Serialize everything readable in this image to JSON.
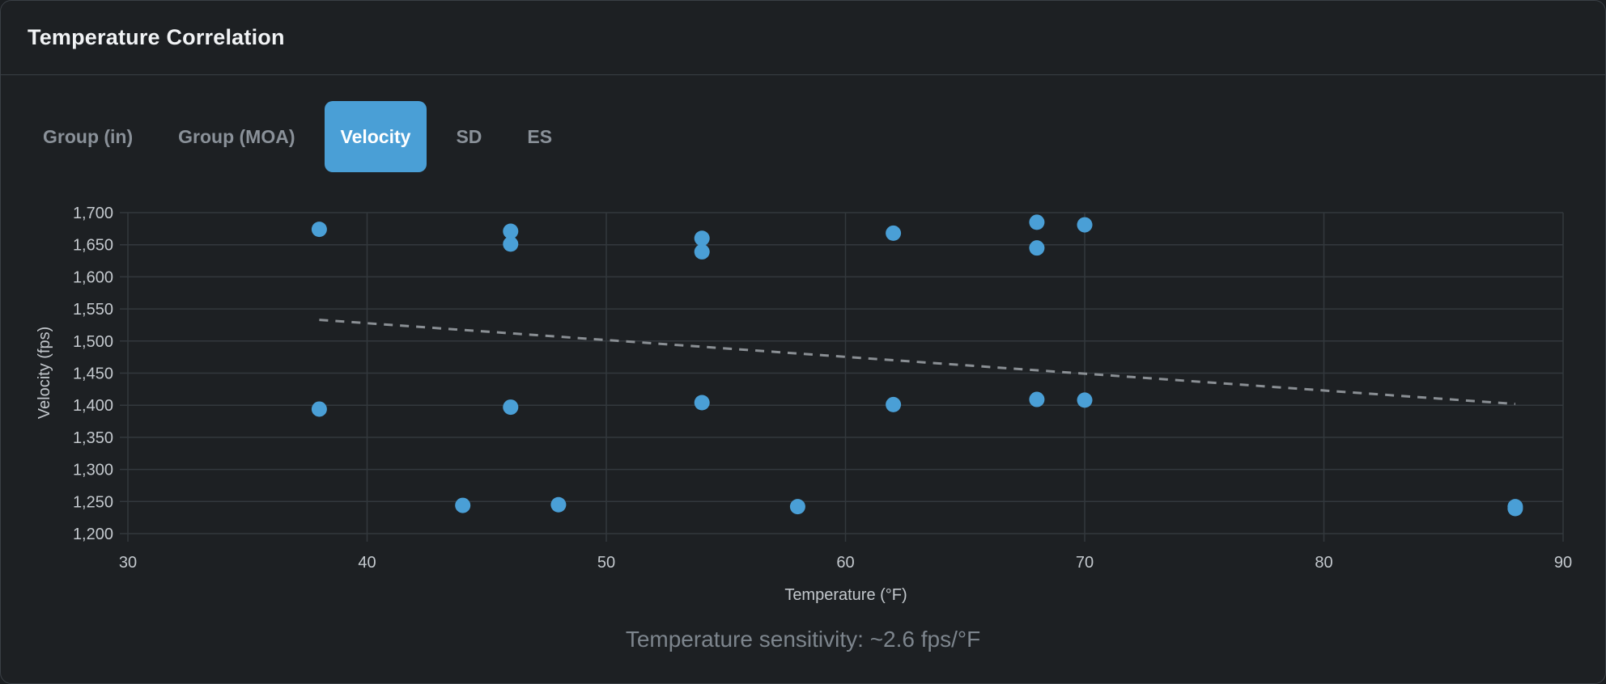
{
  "header": {
    "title": "Temperature Correlation"
  },
  "tabs": [
    {
      "label": "Group (in)",
      "active": false
    },
    {
      "label": "Group (MOA)",
      "active": false
    },
    {
      "label": "Velocity",
      "active": true
    },
    {
      "label": "SD",
      "active": false
    },
    {
      "label": "ES",
      "active": false
    }
  ],
  "footer": {
    "sensitivity": "Temperature sensitivity: ~2.6 fps/°F"
  },
  "colors": {
    "accent": "#4a9fd6",
    "point": "#4a9fd6",
    "trend": "#8a8f94",
    "grid": "#33383d"
  },
  "chart_data": {
    "type": "scatter",
    "xlabel": "Temperature (°F)",
    "ylabel": "Velocity (fps)",
    "xlim": [
      30,
      90
    ],
    "ylim": [
      1200,
      1700
    ],
    "x_ticks": [
      30,
      40,
      50,
      60,
      70,
      80,
      90
    ],
    "y_ticks": [
      1200,
      1250,
      1300,
      1350,
      1400,
      1450,
      1500,
      1550,
      1600,
      1650,
      1700
    ],
    "x_tick_labels": [
      "30",
      "40",
      "50",
      "60",
      "70",
      "80",
      "90"
    ],
    "y_tick_labels": [
      "1,200",
      "1,250",
      "1,300",
      "1,350",
      "1,400",
      "1,450",
      "1,500",
      "1,550",
      "1,600",
      "1,650",
      "1,700"
    ],
    "grid": true,
    "points": [
      {
        "x": 38,
        "y": 1674
      },
      {
        "x": 38,
        "y": 1394
      },
      {
        "x": 44,
        "y": 1244
      },
      {
        "x": 46,
        "y": 1671
      },
      {
        "x": 46,
        "y": 1651
      },
      {
        "x": 46,
        "y": 1397
      },
      {
        "x": 48,
        "y": 1245
      },
      {
        "x": 54,
        "y": 1660
      },
      {
        "x": 54,
        "y": 1639
      },
      {
        "x": 54,
        "y": 1404
      },
      {
        "x": 58,
        "y": 1242
      },
      {
        "x": 62,
        "y": 1668
      },
      {
        "x": 62,
        "y": 1401
      },
      {
        "x": 68,
        "y": 1685
      },
      {
        "x": 68,
        "y": 1645
      },
      {
        "x": 68,
        "y": 1409
      },
      {
        "x": 70,
        "y": 1681
      },
      {
        "x": 70,
        "y": 1408
      },
      {
        "x": 88,
        "y": 1242
      },
      {
        "x": 88,
        "y": 1239
      }
    ],
    "trendline": {
      "x": [
        38,
        88
      ],
      "y": [
        1533,
        1402
      ]
    }
  }
}
